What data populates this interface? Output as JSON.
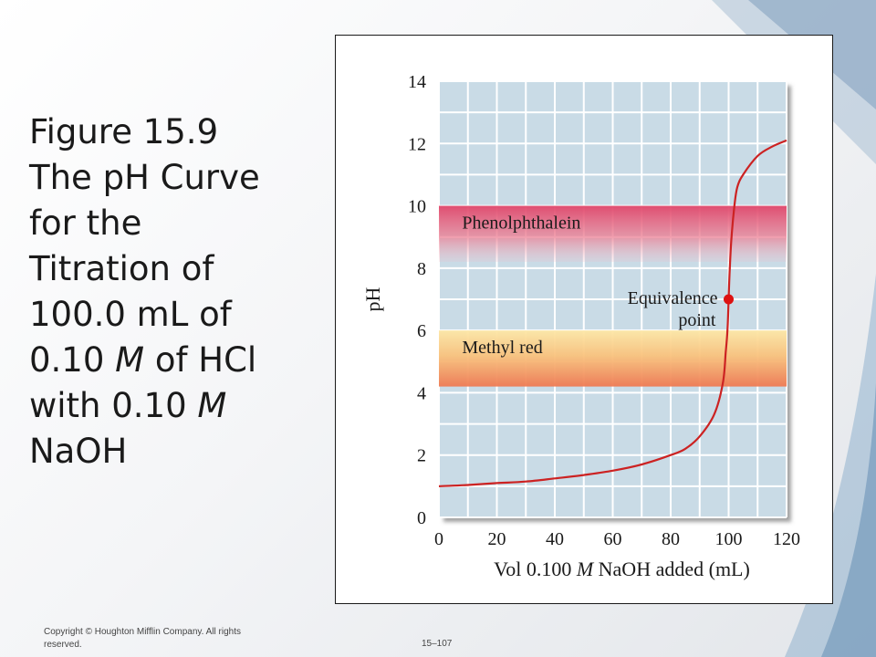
{
  "slide": {
    "title_lines": [
      {
        "a": "Figure 15.9"
      },
      {
        "a": "The pH Curve"
      },
      {
        "a": "for the"
      },
      {
        "a": "Titration of"
      },
      {
        "a": "100.0 mL of"
      },
      {
        "a": "0.10 ",
        "i": "M",
        "b": " of HCl"
      },
      {
        "a": "with 0.10 ",
        "i": "M"
      },
      {
        "a": "NaOH"
      }
    ],
    "copyright": "Copyright © Houghton Mifflin Company. All rights reserved.",
    "page_number": "15–107"
  },
  "chart_data": {
    "type": "line",
    "xlabel_parts": [
      "Vol 0.100 ",
      "M",
      " NaOH added (mL)"
    ],
    "ylabel": "pH",
    "xlim": [
      0,
      120
    ],
    "ylim": [
      0,
      14
    ],
    "x_ticks": [
      0,
      20,
      40,
      60,
      80,
      100,
      120
    ],
    "y_ticks": [
      0,
      2,
      4,
      6,
      8,
      10,
      12,
      14
    ],
    "grid": true,
    "series": [
      {
        "color": "#cc2222",
        "points": [
          [
            0,
            1.0
          ],
          [
            10,
            1.04
          ],
          [
            20,
            1.1
          ],
          [
            30,
            1.15
          ],
          [
            40,
            1.25
          ],
          [
            50,
            1.36
          ],
          [
            60,
            1.5
          ],
          [
            70,
            1.7
          ],
          [
            80,
            2.0
          ],
          [
            85,
            2.2
          ],
          [
            90,
            2.6
          ],
          [
            95,
            3.3
          ],
          [
            98,
            4.3
          ],
          [
            99,
            5.3
          ],
          [
            99.6,
            6.0
          ],
          [
            100,
            7.0
          ],
          [
            100.4,
            8.0
          ],
          [
            101,
            9.0
          ],
          [
            102,
            10.0
          ],
          [
            103,
            10.6
          ],
          [
            105,
            11.0
          ],
          [
            110,
            11.6
          ],
          [
            115,
            11.9
          ],
          [
            120,
            12.1
          ]
        ]
      }
    ],
    "bands": [
      {
        "label": "Phenolphthalein",
        "range": [
          8.2,
          10.0
        ],
        "color": "#e8526c"
      },
      {
        "label": "Methyl red",
        "range": [
          4.2,
          6.0
        ],
        "color": "#f39a6a"
      }
    ],
    "annotations": [
      {
        "label_lines": [
          "Equivalence",
          "point"
        ],
        "point": [
          100,
          7.0
        ],
        "color": "#dd1111"
      }
    ],
    "plot_background": "#c9dbe6",
    "grid_color": "#ffffff"
  }
}
